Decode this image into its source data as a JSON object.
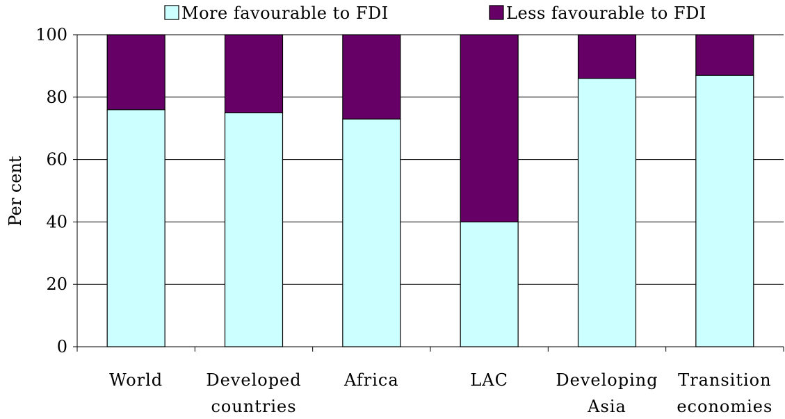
{
  "chart_data": {
    "type": "bar",
    "stacked": true,
    "title": "",
    "xlabel": "",
    "ylabel": "Per cent",
    "ylim": [
      0,
      100
    ],
    "yticks": [
      0,
      20,
      40,
      60,
      80,
      100
    ],
    "grid": "horizontal",
    "legend_position": "top",
    "categories": [
      [
        "World"
      ],
      [
        "Developed",
        "countries"
      ],
      [
        "Africa"
      ],
      [
        "LAC"
      ],
      [
        "Developing",
        "Asia"
      ],
      [
        "Transition",
        "economies"
      ]
    ],
    "series": [
      {
        "name": "More favourable to FDI",
        "color": "#ccffff",
        "values": [
          76,
          75,
          73,
          40,
          86,
          87
        ]
      },
      {
        "name": "Less favourable to FDI",
        "color": "#660066",
        "values": [
          24,
          25,
          27,
          60,
          14,
          13
        ]
      }
    ]
  }
}
